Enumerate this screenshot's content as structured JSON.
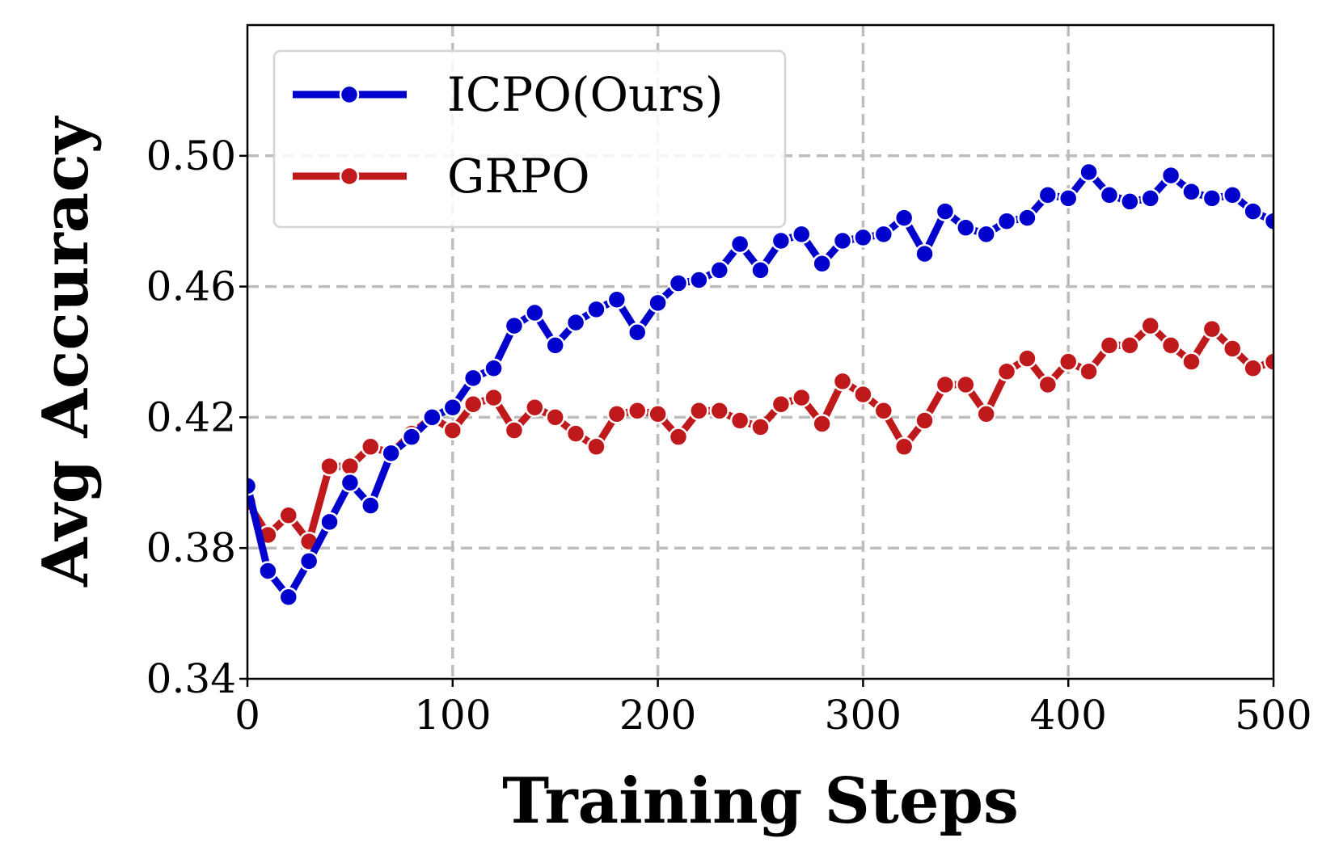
{
  "chart_data": {
    "type": "line",
    "xlabel": "Training Steps",
    "ylabel": "Avg Accuracy",
    "xlim": [
      0,
      500
    ],
    "ylim": [
      0.34,
      0.54
    ],
    "xticks": [
      "0",
      "100",
      "200",
      "300",
      "400",
      "500"
    ],
    "yticks": [
      "0.34",
      "0.38",
      "0.42",
      "0.46",
      "0.50"
    ],
    "grid": true,
    "legend_position": "top-left",
    "x": [
      0,
      10,
      20,
      30,
      40,
      50,
      60,
      70,
      80,
      90,
      100,
      110,
      120,
      130,
      140,
      150,
      160,
      170,
      180,
      190,
      200,
      210,
      220,
      230,
      240,
      250,
      260,
      270,
      280,
      290,
      300,
      310,
      320,
      330,
      340,
      350,
      360,
      370,
      380,
      390,
      400,
      410,
      420,
      430,
      440,
      450,
      460,
      470,
      480,
      490,
      500
    ],
    "series": [
      {
        "name": "ICPO(Ours)",
        "color": "#0000cc",
        "values": [
          0.399,
          0.373,
          0.365,
          0.376,
          0.388,
          0.4,
          0.393,
          0.409,
          0.414,
          0.42,
          0.423,
          0.432,
          0.435,
          0.448,
          0.452,
          0.442,
          0.449,
          0.453,
          0.456,
          0.446,
          0.455,
          0.461,
          0.462,
          0.465,
          0.473,
          0.465,
          0.474,
          0.476,
          0.467,
          0.474,
          0.475,
          0.476,
          0.481,
          0.47,
          0.483,
          0.478,
          0.476,
          0.48,
          0.481,
          0.488,
          0.487,
          0.495,
          0.488,
          0.486,
          0.487,
          0.494,
          0.489,
          0.487,
          0.488,
          0.483,
          0.48
        ]
      },
      {
        "name": "GRPO",
        "color": "#c0191b",
        "values": [
          0.394,
          0.384,
          0.39,
          0.382,
          0.405,
          0.405,
          0.411,
          0.409,
          0.415,
          0.42,
          0.416,
          0.424,
          0.426,
          0.416,
          0.423,
          0.42,
          0.415,
          0.411,
          0.421,
          0.422,
          0.421,
          0.414,
          0.422,
          0.422,
          0.419,
          0.417,
          0.424,
          0.426,
          0.418,
          0.431,
          0.427,
          0.422,
          0.411,
          0.419,
          0.43,
          0.43,
          0.421,
          0.434,
          0.438,
          0.43,
          0.437,
          0.434,
          0.442,
          0.442,
          0.448,
          0.442,
          0.437,
          0.447,
          0.441,
          0.435,
          0.437
        ]
      }
    ]
  }
}
